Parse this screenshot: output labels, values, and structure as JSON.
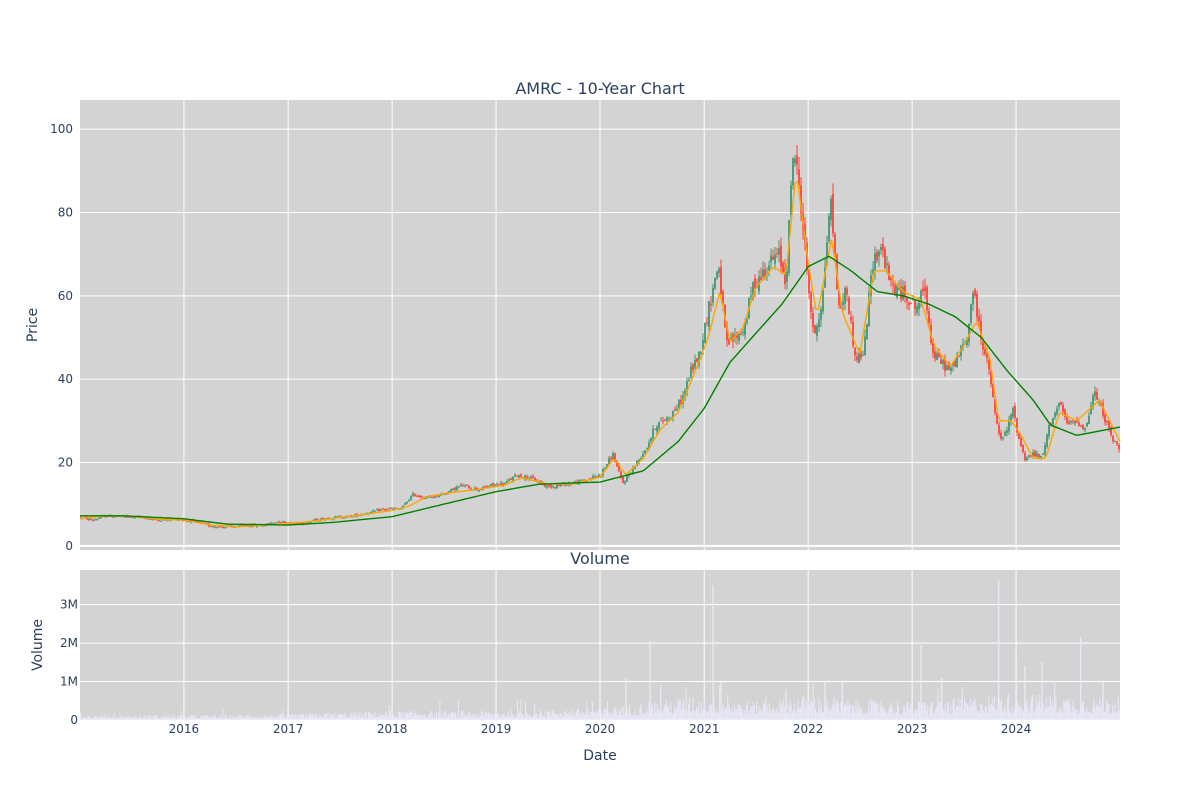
{
  "chart_data": {
    "type": "candlestick",
    "title": "AMRC - 10-Year Chart",
    "price_panel": {
      "ylabel": "Price",
      "ylim": [
        -1,
        107
      ],
      "yticks": [
        0,
        20,
        40,
        60,
        80,
        100
      ],
      "series": [
        {
          "kind": "ohlc-candles",
          "rising_color": "#3d9970",
          "falling_color": "#ff4136",
          "close_path": [
            [
              "2015-01-01",
              6.8
            ],
            [
              "2015-02-15",
              6.2
            ],
            [
              "2015-04-01",
              7.2
            ],
            [
              "2015-06-01",
              7.0
            ],
            [
              "2015-08-01",
              6.9
            ],
            [
              "2015-10-01",
              6.2
            ],
            [
              "2015-12-01",
              6.5
            ],
            [
              "2016-02-01",
              5.9
            ],
            [
              "2016-04-01",
              4.8
            ],
            [
              "2016-06-01",
              4.5
            ],
            [
              "2016-08-01",
              4.9
            ],
            [
              "2016-10-01",
              4.9
            ],
            [
              "2016-12-01",
              5.9
            ],
            [
              "2017-02-01",
              5.2
            ],
            [
              "2017-04-01",
              6.1
            ],
            [
              "2017-06-01",
              6.8
            ],
            [
              "2017-08-01",
              7.0
            ],
            [
              "2017-10-01",
              7.8
            ],
            [
              "2017-12-01",
              8.8
            ],
            [
              "2018-02-01",
              8.9
            ],
            [
              "2018-03-15",
              12.3
            ],
            [
              "2018-05-01",
              11.5
            ],
            [
              "2018-07-01",
              12.5
            ],
            [
              "2018-09-01",
              14.5
            ],
            [
              "2018-11-01",
              13.5
            ],
            [
              "2018-12-15",
              14.5
            ],
            [
              "2019-02-01",
              15.0
            ],
            [
              "2019-03-15",
              17.0
            ],
            [
              "2019-05-01",
              16.3
            ],
            [
              "2019-07-01",
              14.2
            ],
            [
              "2019-09-01",
              14.8
            ],
            [
              "2019-11-01",
              15.5
            ],
            [
              "2020-01-01",
              17.0
            ],
            [
              "2020-02-15",
              22.0
            ],
            [
              "2020-03-20",
              15.0
            ],
            [
              "2020-05-01",
              19.0
            ],
            [
              "2020-06-15",
              24.0
            ],
            [
              "2020-07-15",
              29.0
            ],
            [
              "2020-09-01",
              31.0
            ],
            [
              "2020-10-15",
              35.0
            ],
            [
              "2020-11-15",
              42.0
            ],
            [
              "2020-12-15",
              46.0
            ],
            [
              "2021-01-20",
              58.0
            ],
            [
              "2021-02-20",
              68.0
            ],
            [
              "2021-03-20",
              48.0
            ],
            [
              "2021-04-20",
              50.0
            ],
            [
              "2021-05-20",
              52.0
            ],
            [
              "2021-06-20",
              62.0
            ],
            [
              "2021-07-20",
              65.0
            ],
            [
              "2021-08-20",
              68.0
            ],
            [
              "2021-09-20",
              70.0
            ],
            [
              "2021-10-15",
              63.0
            ],
            [
              "2021-11-10",
              96.0
            ],
            [
              "2021-12-01",
              86.0
            ],
            [
              "2021-12-20",
              72.0
            ],
            [
              "2022-01-20",
              50.0
            ],
            [
              "2022-02-20",
              59.0
            ],
            [
              "2022-03-20",
              84.0
            ],
            [
              "2022-04-20",
              56.0
            ],
            [
              "2022-05-15",
              62.0
            ],
            [
              "2022-06-15",
              45.0
            ],
            [
              "2022-07-15",
              46.0
            ],
            [
              "2022-08-15",
              68.0
            ],
            [
              "2022-09-15",
              72.0
            ],
            [
              "2022-10-15",
              63.0
            ],
            [
              "2022-11-15",
              61.0
            ],
            [
              "2022-12-15",
              60.0
            ],
            [
              "2023-01-15",
              57.0
            ],
            [
              "2023-02-15",
              62.0
            ],
            [
              "2023-03-15",
              46.0
            ],
            [
              "2023-04-15",
              44.0
            ],
            [
              "2023-05-15",
              42.0
            ],
            [
              "2023-06-15",
              46.0
            ],
            [
              "2023-07-15",
              50.0
            ],
            [
              "2023-08-01",
              62.0
            ],
            [
              "2023-09-01",
              50.0
            ],
            [
              "2023-10-01",
              41.0
            ],
            [
              "2023-10-20",
              31.0
            ],
            [
              "2023-11-10",
              25.0
            ],
            [
              "2023-12-01",
              28.0
            ],
            [
              "2023-12-20",
              33.0
            ],
            [
              "2024-01-10",
              26.0
            ],
            [
              "2024-02-01",
              21.0
            ],
            [
              "2024-03-01",
              22.0
            ],
            [
              "2024-04-01",
              21.0
            ],
            [
              "2024-05-01",
              30.0
            ],
            [
              "2024-06-01",
              34.0
            ],
            [
              "2024-07-01",
              29.0
            ],
            [
              "2024-08-01",
              30.0
            ],
            [
              "2024-09-01",
              28.0
            ],
            [
              "2024-10-01",
              37.0
            ],
            [
              "2024-11-01",
              32.0
            ],
            [
              "2024-12-01",
              26.0
            ],
            [
              "2024-12-31",
              23.0
            ]
          ]
        },
        {
          "kind": "line",
          "color": "#ffa500",
          "points": [
            [
              "2015-01-01",
              6.6
            ],
            [
              "2015-04-01",
              7.2
            ],
            [
              "2015-07-01",
              7.1
            ],
            [
              "2015-10-01",
              6.4
            ],
            [
              "2016-01-01",
              6.2
            ],
            [
              "2016-04-01",
              5.0
            ],
            [
              "2016-07-01",
              4.6
            ],
            [
              "2016-10-01",
              4.9
            ],
            [
              "2017-01-01",
              5.4
            ],
            [
              "2017-04-01",
              5.9
            ],
            [
              "2017-07-01",
              6.8
            ],
            [
              "2017-10-01",
              7.6
            ],
            [
              "2018-01-01",
              8.5
            ],
            [
              "2018-03-01",
              9.5
            ],
            [
              "2018-05-01",
              11.8
            ],
            [
              "2018-08-01",
              12.8
            ],
            [
              "2018-11-01",
              13.6
            ],
            [
              "2019-02-01",
              14.6
            ],
            [
              "2019-04-01",
              16.4
            ],
            [
              "2019-07-01",
              14.8
            ],
            [
              "2019-10-01",
              14.9
            ],
            [
              "2020-01-01",
              16.5
            ],
            [
              "2020-02-20",
              21.0
            ],
            [
              "2020-04-01",
              17.0
            ],
            [
              "2020-06-01",
              21.0
            ],
            [
              "2020-08-01",
              28.0
            ],
            [
              "2020-10-01",
              32.0
            ],
            [
              "2020-12-01",
              42.0
            ],
            [
              "2021-01-15",
              50.0
            ],
            [
              "2021-02-25",
              61.0
            ],
            [
              "2021-04-01",
              49.0
            ],
            [
              "2021-05-15",
              52.0
            ],
            [
              "2021-07-01",
              62.0
            ],
            [
              "2021-09-01",
              67.0
            ],
            [
              "2021-10-15",
              65.0
            ],
            [
              "2021-11-20",
              90.0
            ],
            [
              "2022-01-01",
              68.0
            ],
            [
              "2022-02-01",
              55.0
            ],
            [
              "2022-03-25",
              74.0
            ],
            [
              "2022-05-01",
              56.0
            ],
            [
              "2022-07-01",
              46.0
            ],
            [
              "2022-08-20",
              66.0
            ],
            [
              "2022-10-01",
              66.0
            ],
            [
              "2022-12-01",
              61.0
            ],
            [
              "2023-02-01",
              59.0
            ],
            [
              "2023-03-20",
              48.0
            ],
            [
              "2023-05-15",
              43.0
            ],
            [
              "2023-07-01",
              48.0
            ],
            [
              "2023-08-15",
              54.0
            ],
            [
              "2023-10-01",
              45.0
            ],
            [
              "2023-11-01",
              30.0
            ],
            [
              "2023-12-15",
              30.0
            ],
            [
              "2024-01-15",
              27.0
            ],
            [
              "2024-03-01",
              21.0
            ],
            [
              "2024-04-15",
              21.0
            ],
            [
              "2024-06-01",
              32.0
            ],
            [
              "2024-08-01",
              30.0
            ],
            [
              "2024-10-20",
              35.0
            ],
            [
              "2024-12-31",
              25.0
            ]
          ]
        },
        {
          "kind": "line",
          "color": "#008000",
          "points": [
            [
              "2015-01-01",
              7.2
            ],
            [
              "2015-06-01",
              7.2
            ],
            [
              "2016-01-01",
              6.5
            ],
            [
              "2016-06-01",
              5.2
            ],
            [
              "2017-01-01",
              5.0
            ],
            [
              "2017-06-01",
              5.6
            ],
            [
              "2018-01-01",
              7.0
            ],
            [
              "2018-06-01",
              9.5
            ],
            [
              "2019-01-01",
              13.0
            ],
            [
              "2019-06-01",
              14.8
            ],
            [
              "2020-01-01",
              15.3
            ],
            [
              "2020-06-01",
              18.0
            ],
            [
              "2020-10-01",
              25.0
            ],
            [
              "2021-01-01",
              33.0
            ],
            [
              "2021-04-01",
              44.0
            ],
            [
              "2021-07-01",
              51.0
            ],
            [
              "2021-10-01",
              58.0
            ],
            [
              "2022-01-01",
              67.0
            ],
            [
              "2022-03-15",
              69.5
            ],
            [
              "2022-06-01",
              66.0
            ],
            [
              "2022-09-01",
              61.0
            ],
            [
              "2022-12-01",
              60.0
            ],
            [
              "2023-03-01",
              58.0
            ],
            [
              "2023-06-01",
              55.0
            ],
            [
              "2023-09-01",
              50.0
            ],
            [
              "2023-12-01",
              42.0
            ],
            [
              "2024-03-01",
              35.0
            ],
            [
              "2024-05-01",
              29.0
            ],
            [
              "2024-08-01",
              26.5
            ],
            [
              "2024-12-31",
              28.5
            ]
          ]
        }
      ]
    },
    "volume_panel": {
      "title": "Volume",
      "ylabel": "Volume",
      "ylim": [
        0,
        3.9
      ],
      "ytick_labels": [
        "0",
        "1M",
        "2M",
        "3M"
      ],
      "yticks": [
        0,
        1,
        2,
        3
      ],
      "bar_color": "#e8e8f8",
      "baseline_level": [
        [
          "2015-01-01",
          0.08
        ],
        [
          "2016-01-01",
          0.08
        ],
        [
          "2017-01-01",
          0.1
        ],
        [
          "2018-01-01",
          0.15
        ],
        [
          "2019-01-01",
          0.15
        ],
        [
          "2020-01-01",
          0.2
        ],
        [
          "2020-06-01",
          0.3
        ],
        [
          "2021-01-01",
          0.4
        ],
        [
          "2021-06-01",
          0.3
        ],
        [
          "2022-01-01",
          0.4
        ],
        [
          "2022-06-01",
          0.35
        ],
        [
          "2023-01-01",
          0.3
        ],
        [
          "2023-06-01",
          0.35
        ],
        [
          "2024-01-01",
          0.45
        ],
        [
          "2024-06-01",
          0.4
        ],
        [
          "2024-12-31",
          0.35
        ]
      ],
      "spikes": [
        [
          "2020-06-25",
          2.05
        ],
        [
          "2021-02-01",
          3.5
        ],
        [
          "2021-03-01",
          1.0
        ],
        [
          "2023-02-01",
          1.95
        ],
        [
          "2023-11-01",
          3.65
        ],
        [
          "2024-08-15",
          2.15
        ],
        [
          "2024-04-01",
          1.5
        ],
        [
          "2023-04-15",
          1.1
        ],
        [
          "2020-04-01",
          1.1
        ],
        [
          "2020-08-01",
          0.9
        ],
        [
          "2021-10-15",
          0.8
        ],
        [
          "2022-03-01",
          1.0
        ],
        [
          "2022-05-01",
          1.0
        ],
        [
          "2024-02-01",
          1.4
        ],
        [
          "2024-11-01",
          1.0
        ]
      ]
    },
    "x_axis": {
      "xlabel": "Date",
      "xlim": [
        "2015-01-01",
        "2024-12-31"
      ],
      "ticks": [
        "2016",
        "2017",
        "2018",
        "2019",
        "2020",
        "2021",
        "2022",
        "2023",
        "2024"
      ]
    }
  }
}
